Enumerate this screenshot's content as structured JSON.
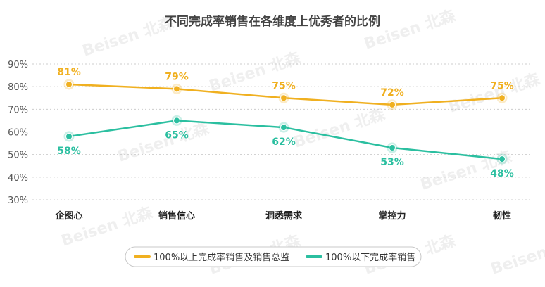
{
  "chart_data": {
    "type": "line",
    "title": "不同完成率销售在各维度上优秀者的比例",
    "categories": [
      "企图心",
      "销售信心",
      "洞悉需求",
      "掌控力",
      "韧性"
    ],
    "yticks": [
      "90%",
      "80%",
      "70%",
      "60%",
      "50%",
      "40%",
      "30%"
    ],
    "ylim": [
      30,
      90
    ],
    "grid": true,
    "legend_position": "bottom",
    "series": [
      {
        "name": "100%以上完成率销售及销售总监",
        "values": [
          81,
          79,
          75,
          72,
          75
        ],
        "labels": [
          "81%",
          "79%",
          "75%",
          "72%",
          "75%"
        ],
        "label_position": "above",
        "color": "#f0b020"
      },
      {
        "name": "100%以下完成率销售",
        "values": [
          58,
          65,
          62,
          53,
          48
        ],
        "labels": [
          "58%",
          "65%",
          "62%",
          "53%",
          "48%"
        ],
        "label_position": "below",
        "color": "#2bbfa0"
      }
    ],
    "watermark": "Beisen 北森"
  }
}
